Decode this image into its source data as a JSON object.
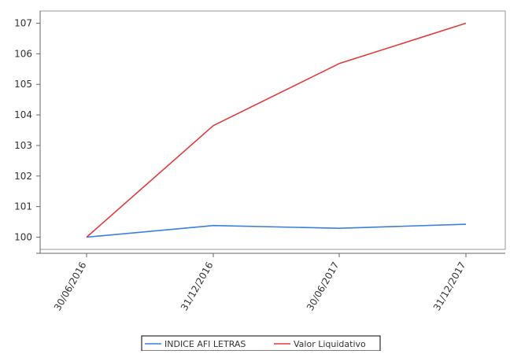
{
  "chart_data": {
    "type": "line",
    "title": "",
    "xlabel": "",
    "ylabel": "",
    "categories": [
      "30/06/2016",
      "31/12/2016",
      "30/06/2017",
      "31/12/2017"
    ],
    "ylim": [
      99.6,
      107.4
    ],
    "yticks": [
      100,
      101,
      102,
      103,
      104,
      105,
      106,
      107
    ],
    "grid": false,
    "legend_position": "bottom-center",
    "series": [
      {
        "name": "INDICE AFI LETRAS",
        "color": "#3a7fe0",
        "values": [
          100,
          100.38,
          100.29,
          100.42
        ]
      },
      {
        "name": "Valor Liquidativo",
        "color": "#e23b3b",
        "values": [
          100,
          103.65,
          105.68,
          107.0
        ]
      }
    ]
  }
}
